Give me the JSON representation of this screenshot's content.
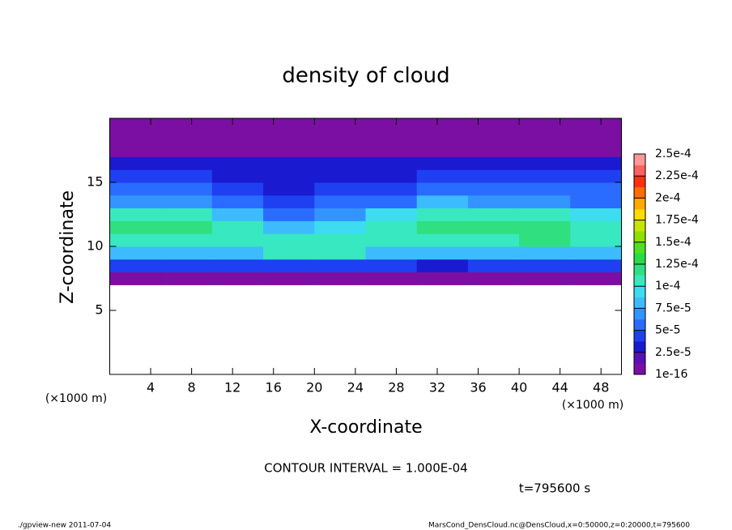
{
  "chart_data": {
    "type": "heatmap",
    "title": "density of cloud",
    "x_label": "X-coordinate",
    "y_label": "Z-coordinate",
    "x_unit_label": "(×1000 m)",
    "y_unit_label": "(×1000 m)",
    "contour_note": "CONTOUR INTERVAL = 1.000E-04",
    "time_label": "t=795600 s",
    "footer_left": "./gpview-new  2011-07-04",
    "footer_right": "MarsCond_DensCloud.nc@DensCloud,x=0:50000,z=0:20000,t=795600",
    "xlim": [
      0,
      50
    ],
    "ylim": [
      0,
      20
    ],
    "xticks": [
      4,
      8,
      12,
      16,
      20,
      24,
      28,
      32,
      36,
      40,
      44,
      48
    ],
    "yticks": [
      5,
      10,
      15
    ],
    "x": [
      2.5,
      7.5,
      12.5,
      17.5,
      22.5,
      27.5,
      32.5,
      37.5,
      42.5,
      47.5
    ],
    "z": [
      7.5,
      8.5,
      9.5,
      10.5,
      11.5,
      12.5,
      13.5,
      14.5,
      15.5,
      16.5,
      17.5,
      18.5,
      19.5
    ],
    "values": [
      [
        5e-06,
        5e-06,
        5e-06,
        5e-06,
        5e-06,
        5e-06,
        5e-06,
        5e-06,
        5e-06,
        5e-06
      ],
      [
        4e-05,
        4e-05,
        4e-05,
        4e-05,
        4e-05,
        4e-05,
        3e-05,
        4e-05,
        4e-05,
        4e-05
      ],
      [
        8e-05,
        8e-05,
        8e-05,
        0.0001,
        0.0001,
        8e-05,
        8e-05,
        8e-05,
        8e-05,
        8e-05
      ],
      [
        0.00011,
        0.00011,
        0.0001,
        0.000105,
        0.00011,
        0.000105,
        0.0001,
        0.00011,
        0.000115,
        0.00011
      ],
      [
        0.000115,
        0.000115,
        0.0001,
        8e-05,
        9e-05,
        0.000105,
        0.000115,
        0.00012,
        0.000115,
        0.00011
      ],
      [
        0.0001,
        0.0001,
        8e-05,
        6e-05,
        7e-05,
        9e-05,
        0.000105,
        0.0001,
        0.0001,
        9e-05
      ],
      [
        7e-05,
        7e-05,
        5e-05,
        4e-05,
        5e-05,
        6e-05,
        8e-05,
        7e-05,
        7e-05,
        6e-05
      ],
      [
        5e-05,
        5e-05,
        4e-05,
        3.5e-05,
        4e-05,
        4.5e-05,
        5.5e-05,
        5e-05,
        5e-05,
        5e-05
      ],
      [
        4e-05,
        4e-05,
        3e-05,
        3e-05,
        3e-05,
        3.5e-05,
        4e-05,
        4e-05,
        4e-05,
        4e-05
      ],
      [
        2.5e-05,
        2.5e-05,
        2.5e-05,
        2.5e-05,
        2.5e-05,
        2.5e-05,
        2.5e-05,
        2.5e-05,
        2.5e-05,
        2.5e-05
      ],
      [
        1e-05,
        1e-05,
        1e-05,
        1e-05,
        1e-05,
        1e-05,
        1e-05,
        1e-05,
        1e-05,
        1e-05
      ],
      [
        5e-06,
        5e-06,
        5e-06,
        5e-06,
        5e-06,
        5e-06,
        5e-06,
        5e-06,
        5e-06,
        5e-06
      ],
      [
        3e-06,
        3e-06,
        3e-06,
        3e-06,
        3e-06,
        3e-06,
        3e-06,
        3e-06,
        3e-06,
        3e-06
      ]
    ],
    "colorbar_ticks": [
      {
        "value": 1e-16,
        "label": "1e-16"
      },
      {
        "value": 2.5e-05,
        "label": "2.5e-5"
      },
      {
        "value": 5e-05,
        "label": "5e-5"
      },
      {
        "value": 7.5e-05,
        "label": "7.5e-5"
      },
      {
        "value": 0.0001,
        "label": "1e-4"
      },
      {
        "value": 0.000125,
        "label": "1.25e-4"
      },
      {
        "value": 0.00015,
        "label": "1.5e-4"
      },
      {
        "value": 0.000175,
        "label": "1.75e-4"
      },
      {
        "value": 0.0002,
        "label": "2e-4"
      },
      {
        "value": 0.000225,
        "label": "2.25e-4"
      },
      {
        "value": 0.00025,
        "label": "2.5e-4"
      }
    ],
    "colors": [
      "#7b0fa3",
      "#5a10b8",
      "#1a1ad0",
      "#1e40f0",
      "#2a6cff",
      "#3494ff",
      "#3cbcff",
      "#3ddcf0",
      "#38e8c0",
      "#30e080",
      "#28dc48",
      "#50e020",
      "#90e000",
      "#c8e400",
      "#ffdc00",
      "#ffa800",
      "#ff6c00",
      "#ff3010",
      "#ff6060",
      "#ff9898"
    ]
  }
}
